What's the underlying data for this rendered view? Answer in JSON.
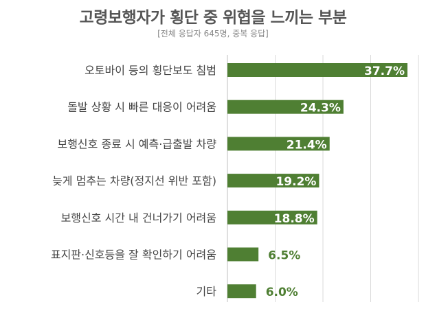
{
  "title": "고령보행자가 횡단 중 위협을 느끼는 부분",
  "subtitle": "[전체 응답자 645명, 중복 응답]",
  "colors": {
    "bar": "#4f7f33",
    "grid": "#d9d9d9",
    "label_inside": "#ffffff",
    "label_outside": "#4f7f33"
  },
  "chart_data": {
    "type": "bar",
    "orientation": "horizontal",
    "title": "고령보행자가 횡단 중 위협을 느끼는 부분",
    "subtitle": "[전체 응답자 645명, 중복 응답]",
    "categories": [
      "오토바이 등의 횡단보도 침범",
      "돌발 상황 시 빠른 대응이 어려움",
      "보행신호 종료 시 예측·급출발 차량",
      "늦게 멈추는 차량(정지선 위반 포함)",
      "보행신호 시간 내 건너가기 어려움",
      "표지판·신호등을 잘 확인하기 어려움",
      "기타"
    ],
    "values": [
      37.7,
      24.3,
      21.4,
      19.2,
      18.8,
      6.5,
      6.0
    ],
    "value_labels": [
      "37.7%",
      "24.3%",
      "21.4%",
      "19.2%",
      "18.8%",
      "6.5%",
      "6.0%"
    ],
    "xlim": [
      0,
      40
    ],
    "grid": true,
    "legend": "none"
  }
}
